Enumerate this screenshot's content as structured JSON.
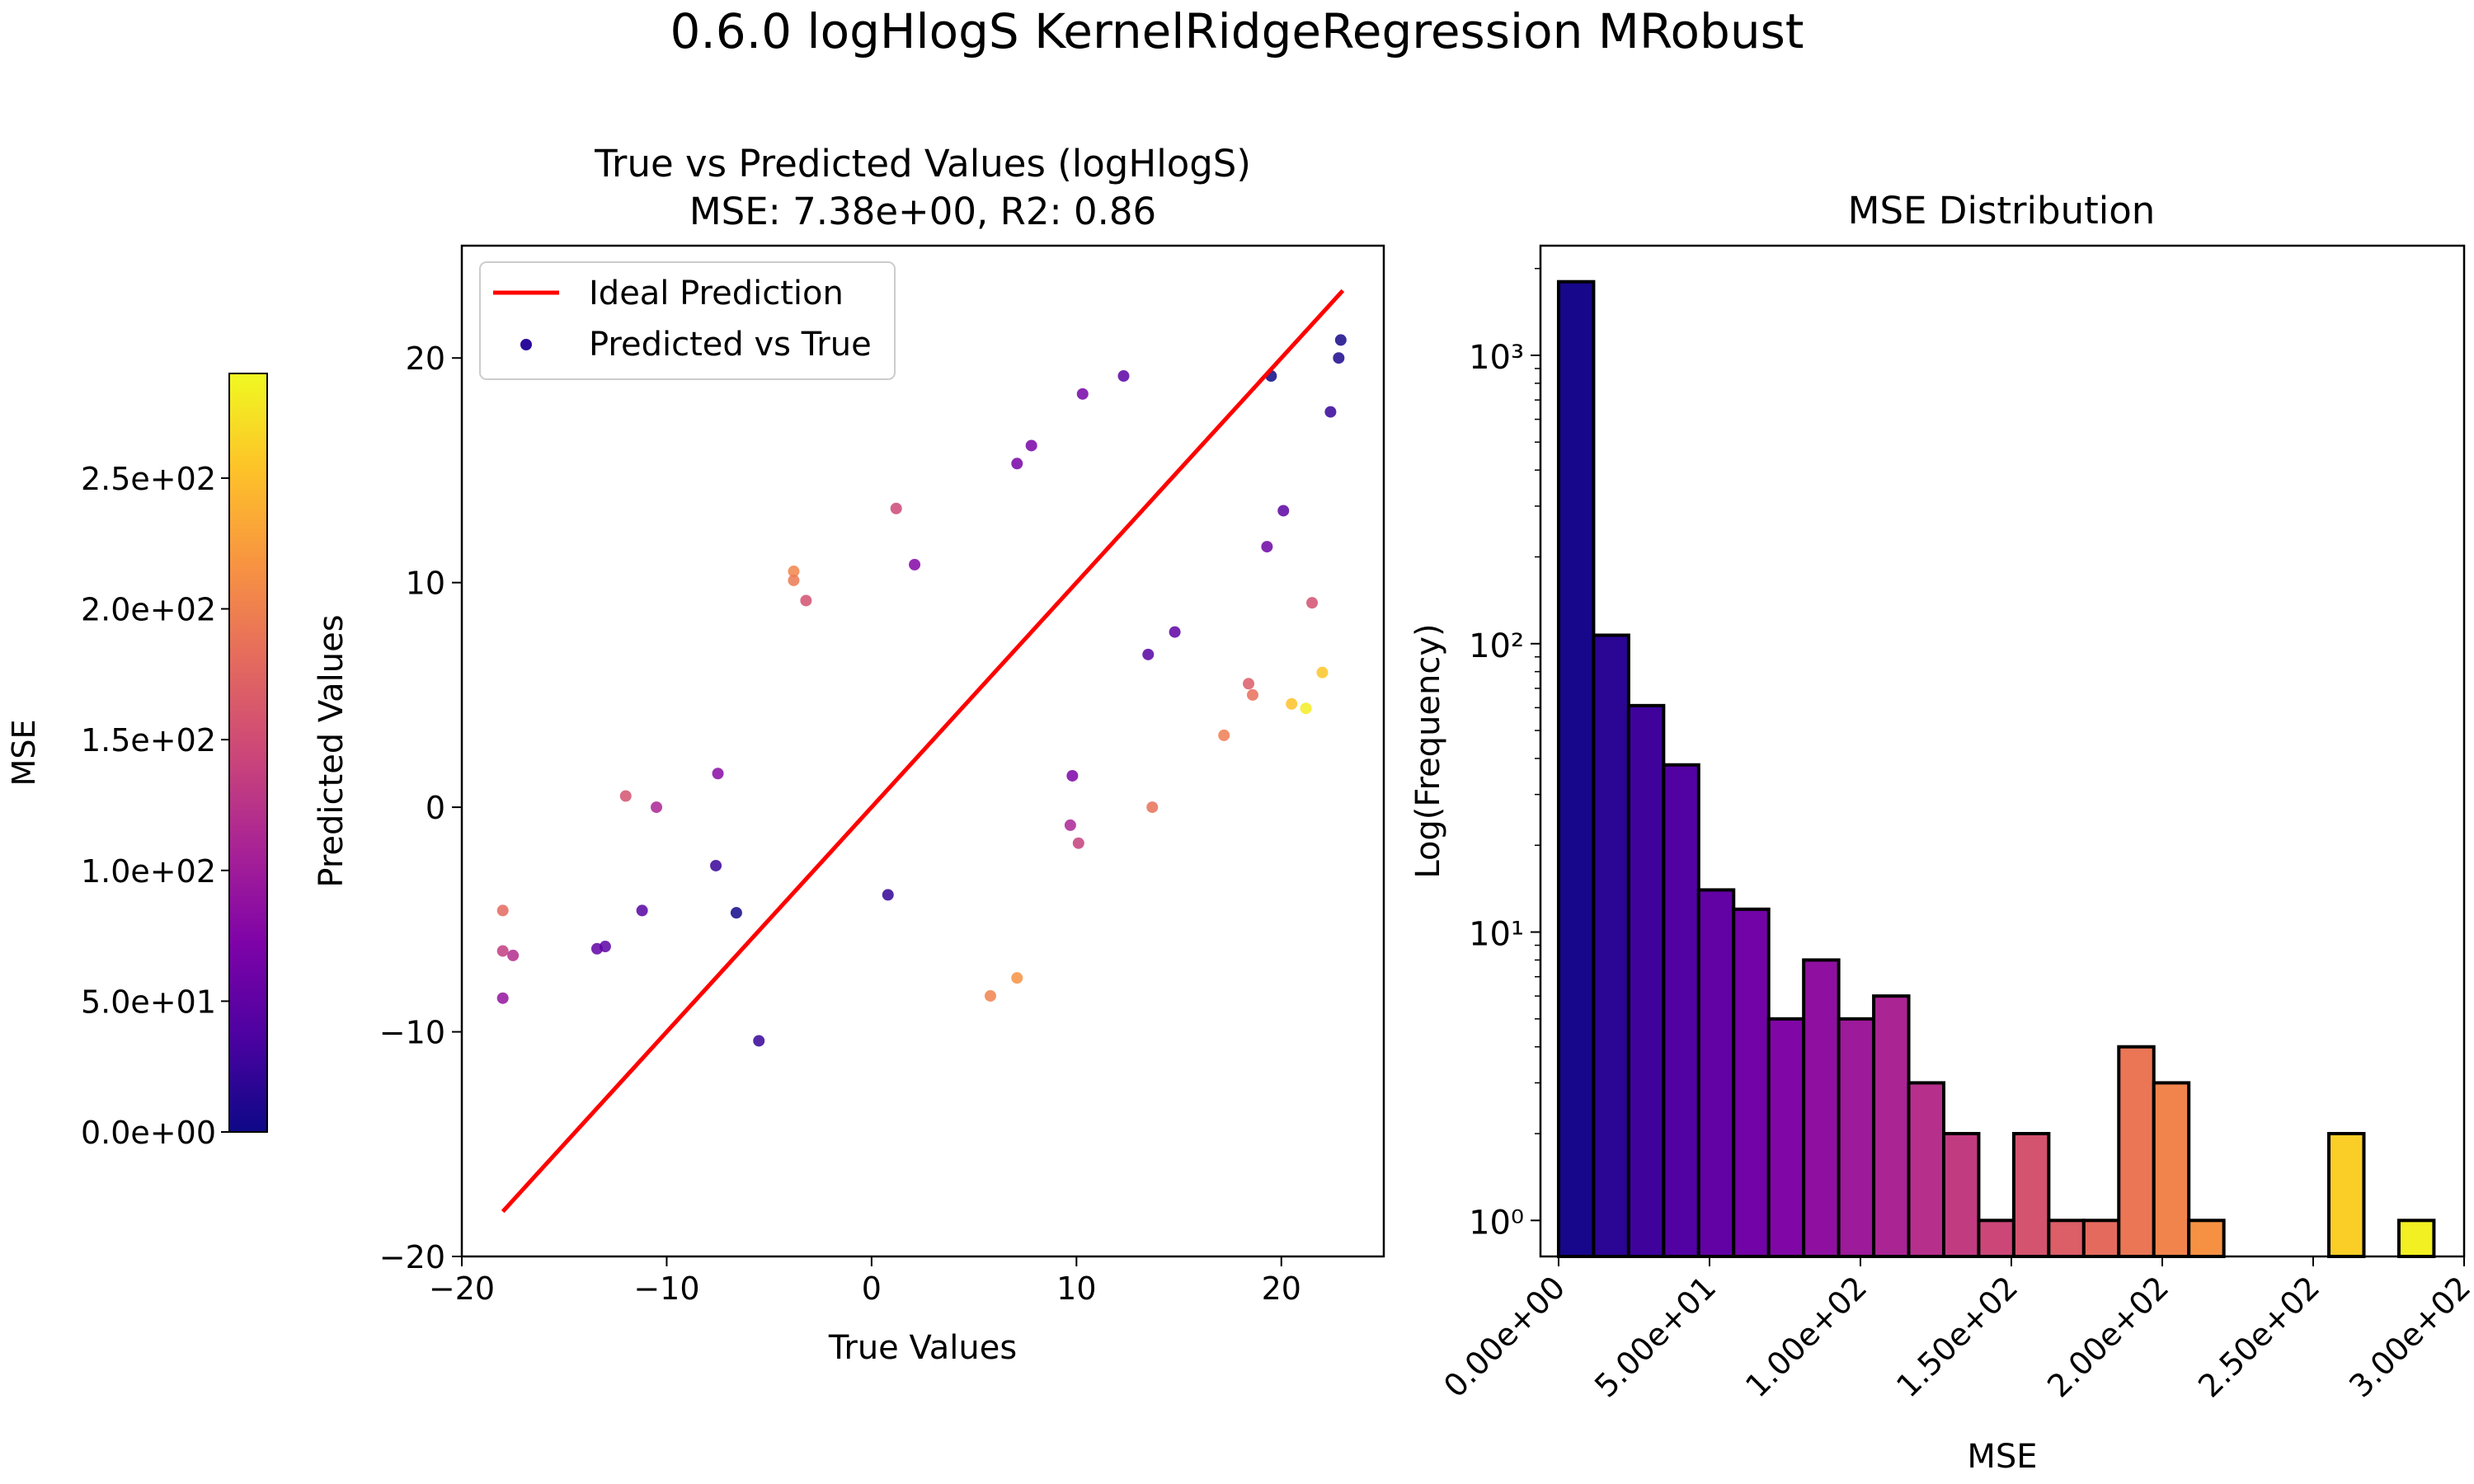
{
  "figure": {
    "suptitle": "0.6.0 logHlogS KernelRidgeRegression MRobust"
  },
  "colorbar": {
    "label": "MSE",
    "colormap": "plasma",
    "range": [
      0,
      290
    ],
    "ticks": [
      0,
      50,
      100,
      150,
      200,
      250
    ],
    "tick_labels": [
      "0.0e+00",
      "5.0e+01",
      "1.0e+02",
      "1.5e+02",
      "2.0e+02",
      "2.5e+02"
    ]
  },
  "chart_data": [
    {
      "type": "scatter",
      "title": "True vs Predicted Values (logHlogS)\nMSE: 7.38e+00, R2: 0.86",
      "title_lines": [
        "True vs Predicted Values (logHlogS)",
        "MSE: 7.38e+00, R2: 0.86"
      ],
      "xlabel": "True Values",
      "ylabel": "Predicted Values",
      "xlim": [
        -20,
        25
      ],
      "ylim": [
        -20,
        25
      ],
      "xticks": [
        -20,
        -10,
        0,
        10,
        20
      ],
      "yticks": [
        -20,
        -10,
        0,
        10,
        20
      ],
      "xtick_labels": [
        "−20",
        "−10",
        "0",
        "10",
        "20"
      ],
      "ytick_labels": [
        "−20",
        "−10",
        "0",
        "10",
        "20"
      ],
      "legend": [
        "Ideal Prediction",
        "Predicted vs True"
      ],
      "legend_placement": "upper-left",
      "grid": false,
      "ideal_line": {
        "name": "Ideal Prediction",
        "color": "#ff0000",
        "x": [
          -18,
          23
        ],
        "y": [
          -18,
          23
        ]
      },
      "series": [
        {
          "name": "Predicted vs True",
          "color_by": "MSE",
          "points": [
            [
              -18,
              -4.6
            ],
            [
              -18,
              -6.4
            ],
            [
              -17.5,
              -6.6
            ],
            [
              -18,
              -8.5
            ],
            [
              -3.8,
              10.5
            ],
            [
              -3.8,
              10.1
            ],
            [
              1.2,
              13.3
            ],
            [
              2.1,
              10.8
            ],
            [
              -3.2,
              9.2
            ],
            [
              17.2,
              3.2
            ],
            [
              18.6,
              5.0
            ],
            [
              18.4,
              5.5
            ],
            [
              20.5,
              4.6
            ],
            [
              21.2,
              4.4
            ],
            [
              22,
              6.0
            ],
            [
              21.5,
              9.1
            ],
            [
              13.7,
              0.0
            ],
            [
              9.7,
              -0.8
            ],
            [
              10.1,
              -1.6
            ],
            [
              9.8,
              1.4
            ],
            [
              -10.5,
              0.0
            ],
            [
              -7.5,
              1.5
            ],
            [
              -7.6,
              -2.6
            ],
            [
              -13,
              -6.2
            ],
            [
              -13.4,
              -6.3
            ],
            [
              -11.2,
              -4.6
            ],
            [
              -6.6,
              -4.7
            ],
            [
              -12,
              0.5
            ],
            [
              12.3,
              19.2
            ],
            [
              10.3,
              18.4
            ],
            [
              7.1,
              15.3
            ],
            [
              7.8,
              16.1
            ],
            [
              22.9,
              20.8
            ],
            [
              22.8,
              20.0
            ],
            [
              22.4,
              17.6
            ],
            [
              19.5,
              19.2
            ],
            [
              19.3,
              11.6
            ],
            [
              20.1,
              13.2
            ],
            [
              14.8,
              7.8
            ],
            [
              13.5,
              6.8
            ],
            [
              7.1,
              -7.6
            ],
            [
              5.8,
              -8.4
            ],
            [
              0.8,
              -3.9
            ],
            [
              -5.5,
              -10.4
            ]
          ]
        }
      ]
    },
    {
      "type": "bar",
      "title": "MSE Distribution",
      "xlabel": "MSE",
      "ylabel": "Log(Frequency)",
      "yscale": "log",
      "xlim": [
        -6,
        300
      ],
      "ylim": [
        0.75,
        2400
      ],
      "xticks": [
        0,
        50,
        100,
        150,
        200,
        250,
        300
      ],
      "xtick_labels": [
        "0.00e+00",
        "5.00e+01",
        "1.00e+02",
        "1.50e+02",
        "2.00e+02",
        "2.50e+02",
        "3.00e+02"
      ],
      "yticks": [
        1,
        10,
        100,
        1000
      ],
      "ytick_labels": [
        "10⁰",
        "10¹",
        "10²",
        "10³"
      ],
      "grid": false,
      "bin_width": 11.6,
      "bin_edges_start": 0,
      "values": [
        1800,
        107,
        61,
        38,
        14,
        12,
        5,
        8,
        5,
        6,
        3,
        2,
        1,
        2,
        1,
        1,
        4,
        3,
        1,
        0,
        0,
        0,
        2,
        0,
        1
      ]
    }
  ]
}
